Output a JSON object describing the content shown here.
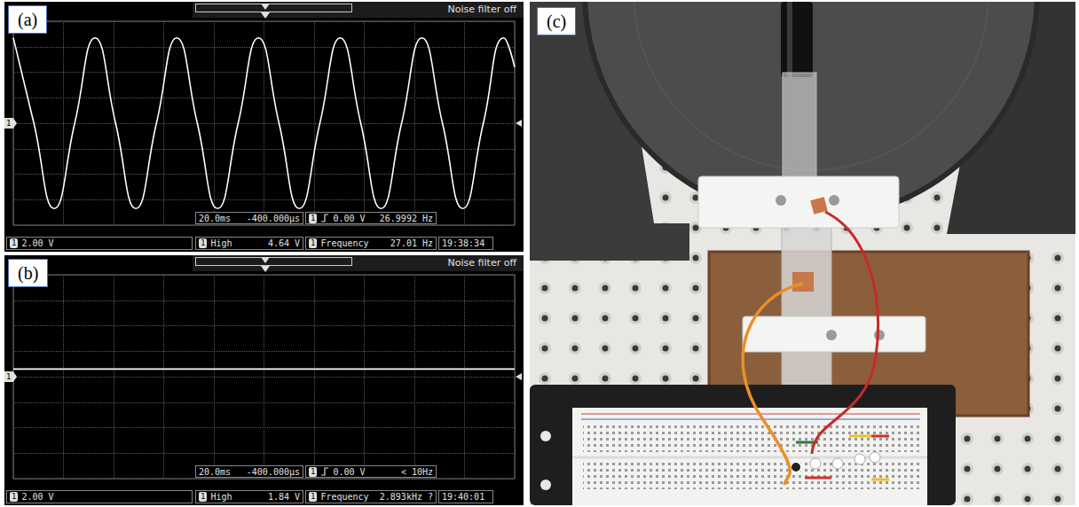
{
  "chart_data": [
    {
      "panel_label": "(a)",
      "type": "line",
      "header": "Noise filter off",
      "x": [
        0,
        8.2,
        16.3,
        24.5,
        32.6,
        40.8,
        48.9,
        57.1,
        65.2,
        73.4,
        81.5,
        89.7,
        97.8,
        106.0,
        114.1,
        122.3,
        130.4,
        138.6,
        146.7,
        154.9,
        163.0,
        171.2,
        179.3,
        187.5,
        195.6,
        200
      ],
      "values": [
        6.7,
        0,
        -6.7,
        0,
        6.7,
        0,
        -6.7,
        0,
        6.7,
        0,
        -6.7,
        0,
        6.7,
        0,
        -6.7,
        0,
        6.7,
        0,
        -6.7,
        0,
        6.7,
        0,
        -6.7,
        0,
        6.7,
        4.4
      ],
      "color": "#ffffff",
      "xlim": [
        0,
        200
      ],
      "xticks": [
        0,
        20,
        40,
        60,
        80,
        100,
        120,
        140,
        160,
        180,
        200
      ],
      "ylim": [
        -8,
        8
      ],
      "yticks": [
        -8,
        -6,
        -4,
        -2,
        0,
        2,
        4,
        6,
        8
      ],
      "grid": true,
      "tick_labels": false,
      "status": {
        "channel": "1",
        "volts_per_div": "2.00 V",
        "time_per_div": "20.0ms",
        "delay": "-400.000µs",
        "trigger_level": "0.00 V",
        "trigger_frequency": "26.9992 Hz",
        "measurement": "High",
        "measurement_value": "4.64 V",
        "frequency_label": "Frequency",
        "frequency_value": "27.01 Hz",
        "time": "19:38:34"
      }
    },
    {
      "panel_label": "(b)",
      "type": "line",
      "header": "Noise filter off",
      "x": [
        0,
        50,
        100,
        150,
        200
      ],
      "values": [
        0.6,
        0.6,
        0.6,
        0.6,
        0.6
      ],
      "color": "#ffffff",
      "xlim": [
        0,
        200
      ],
      "xticks": [
        0,
        20,
        40,
        60,
        80,
        100,
        120,
        140,
        160,
        180,
        200
      ],
      "ylim": [
        -8,
        8
      ],
      "yticks": [
        -8,
        -6,
        -4,
        -2,
        0,
        2,
        4,
        6,
        8
      ],
      "grid": true,
      "tick_labels": false,
      "status": {
        "channel": "1",
        "volts_per_div": "2.00 V",
        "time_per_div": "20.0ms",
        "delay": "-400.000µs",
        "trigger_level": "0.00 V",
        "trigger_frequency": "< 10Hz",
        "measurement": "High",
        "measurement_value": "1.84 V",
        "frequency_label": "Frequency",
        "frequency_value": "2.893kHz ?",
        "time": "19:40:01"
      }
    }
  ],
  "photo": {
    "panel_label": "(c)"
  }
}
